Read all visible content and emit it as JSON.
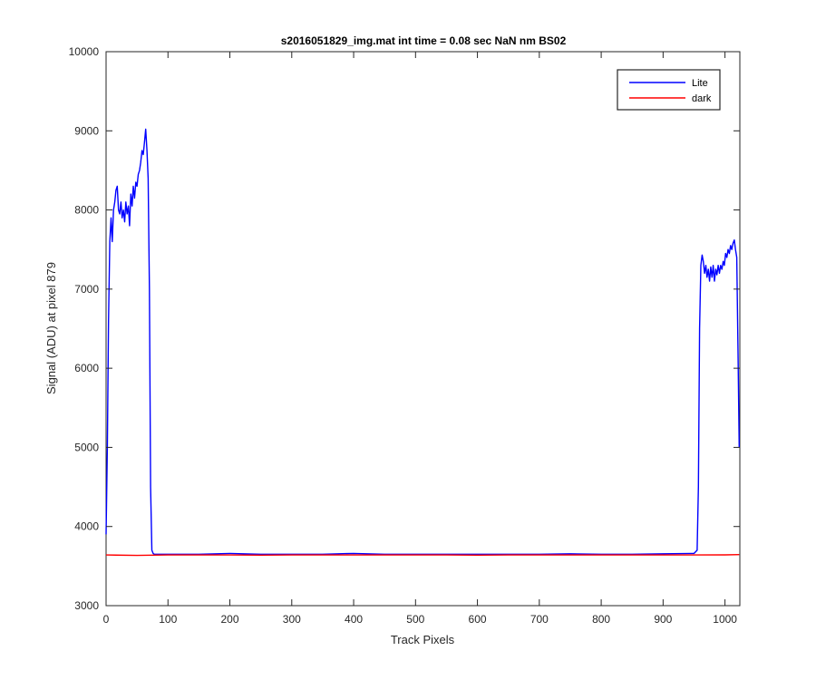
{
  "chart_data": {
    "type": "line",
    "title": "s2016051829_img.mat int time = 0.08 sec  NaN nm BS02",
    "xlabel": "Track Pixels",
    "ylabel": "Signal (ADU) at pixel 879",
    "xlim": [
      0,
      1024
    ],
    "ylim": [
      3000,
      10000
    ],
    "x_ticks": [
      0,
      100,
      200,
      300,
      400,
      500,
      600,
      700,
      800,
      900,
      1000
    ],
    "y_ticks": [
      3000,
      4000,
      5000,
      6000,
      7000,
      8000,
      9000,
      10000
    ],
    "grid": false,
    "legend_position": "top-right",
    "series": [
      {
        "name": "Lite",
        "color": "#0000ff",
        "points": [
          [
            0,
            3900
          ],
          [
            2,
            5000
          ],
          [
            4,
            6600
          ],
          [
            6,
            7600
          ],
          [
            8,
            7900
          ],
          [
            10,
            7600
          ],
          [
            12,
            8000
          ],
          [
            14,
            8100
          ],
          [
            16,
            8250
          ],
          [
            18,
            8300
          ],
          [
            20,
            8000
          ],
          [
            22,
            7950
          ],
          [
            24,
            8100
          ],
          [
            26,
            7900
          ],
          [
            28,
            8000
          ],
          [
            30,
            7850
          ],
          [
            32,
            8100
          ],
          [
            34,
            7950
          ],
          [
            36,
            8050
          ],
          [
            38,
            7800
          ],
          [
            40,
            8200
          ],
          [
            42,
            8050
          ],
          [
            44,
            8300
          ],
          [
            46,
            8150
          ],
          [
            48,
            8350
          ],
          [
            50,
            8300
          ],
          [
            52,
            8450
          ],
          [
            54,
            8500
          ],
          [
            56,
            8600
          ],
          [
            58,
            8750
          ],
          [
            60,
            8700
          ],
          [
            62,
            8850
          ],
          [
            64,
            9020
          ],
          [
            66,
            8750
          ],
          [
            68,
            8400
          ],
          [
            70,
            7000
          ],
          [
            72,
            4500
          ],
          [
            74,
            3700
          ],
          [
            76,
            3660
          ],
          [
            78,
            3650
          ],
          [
            100,
            3650
          ],
          [
            150,
            3650
          ],
          [
            200,
            3660
          ],
          [
            250,
            3650
          ],
          [
            300,
            3650
          ],
          [
            350,
            3650
          ],
          [
            400,
            3660
          ],
          [
            450,
            3650
          ],
          [
            500,
            3650
          ],
          [
            550,
            3650
          ],
          [
            600,
            3650
          ],
          [
            650,
            3650
          ],
          [
            700,
            3650
          ],
          [
            750,
            3655
          ],
          [
            800,
            3650
          ],
          [
            850,
            3650
          ],
          [
            900,
            3655
          ],
          [
            950,
            3660
          ],
          [
            955,
            3700
          ],
          [
            957,
            4500
          ],
          [
            959,
            6500
          ],
          [
            961,
            7300
          ],
          [
            963,
            7430
          ],
          [
            965,
            7350
          ],
          [
            967,
            7200
          ],
          [
            969,
            7300
          ],
          [
            971,
            7150
          ],
          [
            973,
            7250
          ],
          [
            975,
            7100
          ],
          [
            977,
            7280
          ],
          [
            979,
            7150
          ],
          [
            981,
            7300
          ],
          [
            983,
            7100
          ],
          [
            985,
            7250
          ],
          [
            987,
            7180
          ],
          [
            989,
            7300
          ],
          [
            991,
            7200
          ],
          [
            993,
            7300
          ],
          [
            995,
            7250
          ],
          [
            997,
            7350
          ],
          [
            999,
            7300
          ],
          [
            1001,
            7450
          ],
          [
            1003,
            7400
          ],
          [
            1005,
            7500
          ],
          [
            1007,
            7450
          ],
          [
            1009,
            7550
          ],
          [
            1011,
            7500
          ],
          [
            1013,
            7580
          ],
          [
            1015,
            7620
          ],
          [
            1017,
            7500
          ],
          [
            1019,
            7400
          ],
          [
            1021,
            6200
          ],
          [
            1023,
            5000
          ]
        ]
      },
      {
        "name": "dark",
        "color": "#ff0000",
        "points": [
          [
            0,
            3640
          ],
          [
            50,
            3635
          ],
          [
            100,
            3640
          ],
          [
            150,
            3640
          ],
          [
            200,
            3640
          ],
          [
            250,
            3638
          ],
          [
            300,
            3640
          ],
          [
            350,
            3640
          ],
          [
            400,
            3640
          ],
          [
            450,
            3640
          ],
          [
            500,
            3640
          ],
          [
            550,
            3640
          ],
          [
            600,
            3638
          ],
          [
            650,
            3640
          ],
          [
            700,
            3640
          ],
          [
            750,
            3640
          ],
          [
            800,
            3640
          ],
          [
            850,
            3640
          ],
          [
            900,
            3640
          ],
          [
            950,
            3640
          ],
          [
            1000,
            3642
          ],
          [
            1023,
            3645
          ]
        ]
      }
    ]
  }
}
